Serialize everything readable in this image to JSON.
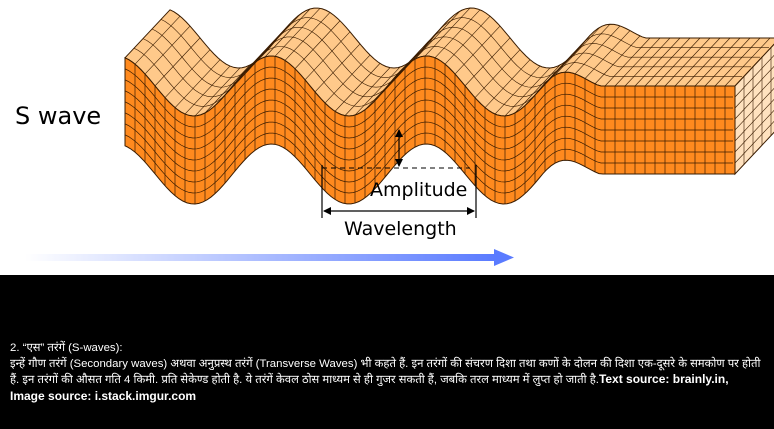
{
  "figure": {
    "wave_label": "S wave",
    "amplitude_label": "Amplitude",
    "wavelength_label": "Wavelength",
    "colors": {
      "front_face": "#ff8a1e",
      "top_face": "#ffc98a",
      "side_face": "#ffe2bf",
      "grid": "#3a1c00",
      "arrow_start": "#ffffff",
      "arrow_end": "#5a7bff"
    }
  },
  "caption": {
    "heading": "2. “एस” तरंगें (S-waves):",
    "body": "इन्हें गौण तरंगें (Secondary waves) अथवा अनुप्रस्थ तरंगें (Transverse Waves) भी कहते हैं. इन तरंगों की संचरण दिशा तथा कणों के दोलन की दिशा एक-दूसरे के समकोण पर होती हैं. इन तरंगों की औसत गति 4 किमी. प्रति सेकेण्ड होती है. ये तरंगें केवल ठोस माध्यम से ही गुजर सकती हैं, जबकि तरल माध्यम में लुप्त हो जाती है.",
    "source": "Text source: brainly.in, Image source: i.stack.imgur.com"
  }
}
